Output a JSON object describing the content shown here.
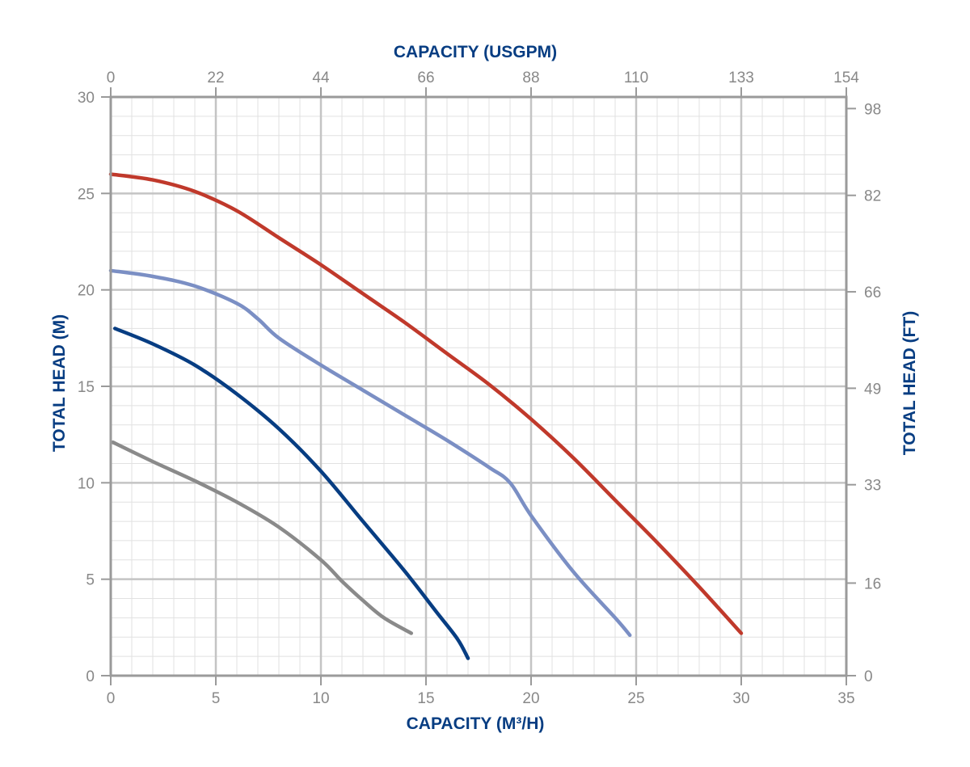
{
  "chart_data": {
    "type": "line",
    "x_label_bottom": "CAPACITY (M³/H)",
    "x_label_top": "CAPACITY (USGPM)",
    "y_label_left": "TOTAL HEAD (M)",
    "y_label_right": "TOTAL HEAD (FT)",
    "xlim": [
      0,
      35
    ],
    "ylim": [
      0,
      30
    ],
    "x_ticks_bottom": [
      "0",
      "5",
      "10",
      "15",
      "20",
      "25",
      "30",
      "35"
    ],
    "x_ticks_top": [
      "0",
      "22",
      "44",
      "66",
      "88",
      "110",
      "133",
      "154"
    ],
    "y_ticks_left": [
      "0",
      "5",
      "10",
      "15",
      "20",
      "25",
      "30"
    ],
    "y_ticks_right": [
      {
        "label": "0",
        "value": 0
      },
      {
        "label": "16",
        "value": 4.8
      },
      {
        "label": "33",
        "value": 9.9
      },
      {
        "label": "49",
        "value": 14.9
      },
      {
        "label": "66",
        "value": 19.9
      },
      {
        "label": "82",
        "value": 24.9
      },
      {
        "label": "98",
        "value": 29.4
      }
    ],
    "grid": true,
    "series": [
      {
        "color": "#c0392b",
        "points": [
          [
            0,
            26
          ],
          [
            2,
            25.7
          ],
          [
            4,
            25.1
          ],
          [
            6,
            24.1
          ],
          [
            8,
            22.7
          ],
          [
            10,
            21.3
          ],
          [
            12,
            19.8
          ],
          [
            14,
            18.3
          ],
          [
            16,
            16.7
          ],
          [
            18,
            15.1
          ],
          [
            20,
            13.3
          ],
          [
            22,
            11.3
          ],
          [
            24,
            9.1
          ],
          [
            26,
            6.9
          ],
          [
            28,
            4.6
          ],
          [
            30,
            2.2
          ]
        ]
      },
      {
        "color": "#7b8fc4",
        "points": [
          [
            0,
            21
          ],
          [
            2,
            20.7
          ],
          [
            4,
            20.2
          ],
          [
            6,
            19.3
          ],
          [
            7,
            18.5
          ],
          [
            8,
            17.5
          ],
          [
            10,
            16.1
          ],
          [
            12,
            14.8
          ],
          [
            14,
            13.5
          ],
          [
            16,
            12.2
          ],
          [
            18,
            10.8
          ],
          [
            19,
            10.0
          ],
          [
            20,
            8.3
          ],
          [
            22,
            5.4
          ],
          [
            24,
            3.0
          ],
          [
            24.7,
            2.1
          ]
        ]
      },
      {
        "color": "#073d82",
        "points": [
          [
            0.2,
            18
          ],
          [
            2,
            17.2
          ],
          [
            4,
            16.1
          ],
          [
            6,
            14.6
          ],
          [
            8,
            12.8
          ],
          [
            10,
            10.6
          ],
          [
            12,
            8.0
          ],
          [
            14,
            5.4
          ],
          [
            15.5,
            3.3
          ],
          [
            16.5,
            1.9
          ],
          [
            17,
            0.9
          ]
        ]
      },
      {
        "color": "#8a8a8a",
        "points": [
          [
            0.1,
            12.1
          ],
          [
            2,
            11.1
          ],
          [
            4,
            10.1
          ],
          [
            6,
            9.0
          ],
          [
            8,
            7.7
          ],
          [
            10,
            6.0
          ],
          [
            11,
            4.9
          ],
          [
            12,
            3.9
          ],
          [
            13,
            3.0
          ],
          [
            14.3,
            2.2
          ]
        ]
      }
    ]
  }
}
